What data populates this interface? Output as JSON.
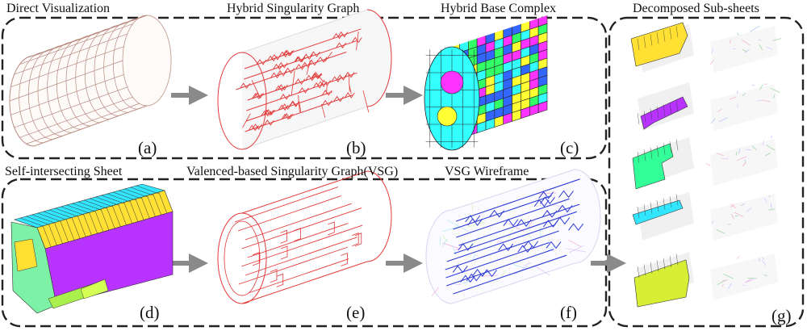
{
  "figure": {
    "panels": [
      {
        "id": "a",
        "title": "Direct Visualization",
        "label": "(a)"
      },
      {
        "id": "b",
        "title": "Hybrid Singularity Graph",
        "label": "(b)"
      },
      {
        "id": "c",
        "title": "Hybrid Base Complex",
        "label": "(c)"
      },
      {
        "id": "d",
        "title": "Self-intersecting Sheet",
        "label": "(d)"
      },
      {
        "id": "e",
        "title": "Valenced-based Singularity Graph(VSG)",
        "label": "(e)"
      },
      {
        "id": "f",
        "title": "VSG Wireframe",
        "label": "(f)"
      },
      {
        "id": "g",
        "title": "Decomposed Sub-sheets",
        "label": "(g)"
      }
    ],
    "colors": {
      "box_border": "#222222",
      "arrow": "#8a8a8a",
      "wire_red": "#e23a3a",
      "base_complex_palette": [
        "#ffff33",
        "#33ffff",
        "#ff33ff",
        "#3366ff",
        "#33ff66"
      ],
      "sheet_cyan": "#33e6ff",
      "sheet_yellow": "#ffe033",
      "sheet_magenta": "#b833ff",
      "sheet_green": "#33ff99",
      "vsg_blue": "#2e3bd6"
    }
  }
}
